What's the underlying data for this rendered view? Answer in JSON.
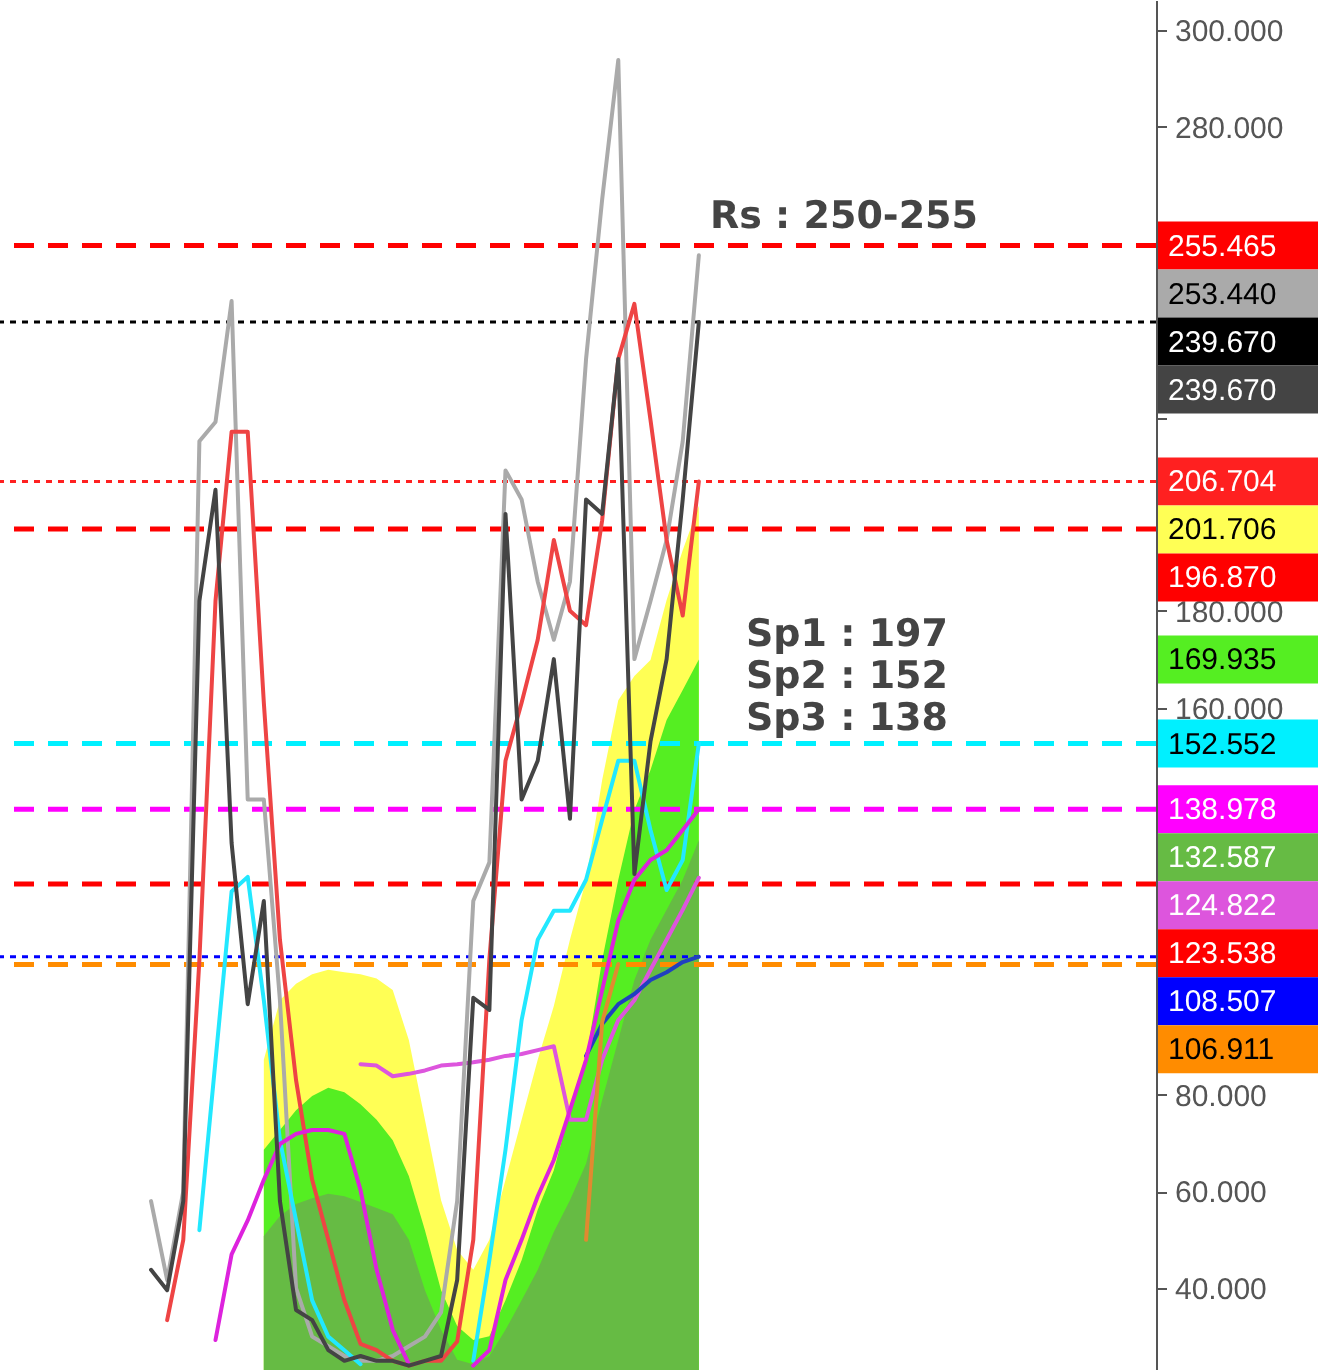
{
  "chart_data": {
    "type": "line",
    "categories": [
      null,
      null,
      null,
      null,
      null,
      null,
      null,
      null,
      null,
      null,
      null,
      null,
      null,
      null,
      null,
      null,
      null,
      null,
      null,
      null,
      null,
      null,
      null,
      null,
      null,
      null,
      null,
      null,
      null,
      null,
      null,
      null,
      null,
      null,
      null,
      null,
      null,
      null,
      null,
      null,
      null,
      null,
      null,
      null,
      null,
      null,
      null,
      null,
      null,
      null,
      null,
      null,
      null,
      null,
      null,
      null,
      null,
      null,
      null,
      null,
      null,
      null,
      null,
      null,
      null,
      null,
      null,
      null,
      null,
      null,
      null,
      null
    ],
    "ylim": [
      23.1,
      306.2
    ],
    "yticks": [
      {
        "value": 40,
        "label": "40.000"
      },
      {
        "value": 60,
        "label": "60.000"
      },
      {
        "value": 80,
        "label": "80.000"
      },
      {
        "value": 100,
        "label": null
      },
      {
        "value": 120,
        "label": null
      },
      {
        "value": 140,
        "label": null
      },
      {
        "value": 160,
        "label": "160.000"
      },
      {
        "value": 180,
        "label": "180.000"
      },
      {
        "value": 200,
        "label": null
      },
      {
        "value": 220,
        "label": null
      },
      {
        "value": 240,
        "label": null
      },
      {
        "value": 260,
        "label": null
      },
      {
        "value": 280,
        "label": "280.000"
      },
      {
        "value": 300,
        "label": "300.000"
      }
    ],
    "tick_labels": "y",
    "grid": false,
    "marker": "none",
    "series": [
      {
        "type": "area",
        "color": "#ffff55",
        "values": [
          null,
          null,
          null,
          null,
          null,
          null,
          null,
          null,
          null,
          null,
          null,
          null,
          null,
          null,
          null,
          null,
          87.2,
          99.5,
          102.9,
          104.9,
          105.8,
          105.3,
          104.9,
          104,
          101.6,
          91.3,
          74.8,
          58.2,
          47.9,
          43.8,
          50,
          62.4,
          74.8,
          87.2,
          98.3,
          112,
          124.4,
          145,
          161.5,
          166.5,
          169.8,
          182.2,
          192.5,
          201.706,
          null,
          null,
          null,
          null,
          null,
          null,
          null,
          null,
          null,
          null,
          null,
          null,
          null,
          null,
          null,
          null,
          null,
          null,
          null,
          null,
          null,
          null,
          null,
          null,
          null,
          null,
          null,
          null
        ]
      },
      {
        "type": "area",
        "color": "#55ee22",
        "values": [
          null,
          null,
          null,
          null,
          null,
          null,
          null,
          null,
          null,
          null,
          null,
          null,
          null,
          null,
          null,
          null,
          68.6,
          72.7,
          76.8,
          79.7,
          81.4,
          80.5,
          78,
          74.8,
          70.6,
          63.2,
          52,
          39.6,
          32.2,
          29.3,
          30.1,
          37.5,
          45.8,
          56.2,
          64.4,
          76.8,
          87.2,
          107.8,
          124.4,
          138.8,
          147.1,
          157.4,
          163.6,
          169.935,
          null,
          null,
          null,
          null,
          null,
          null,
          null,
          null,
          null,
          null,
          null,
          null,
          null,
          null,
          null,
          null,
          null,
          null,
          null,
          null,
          null,
          null,
          null,
          null,
          null,
          null,
          null,
          null
        ]
      },
      {
        "type": "area",
        "color": "#66bb44",
        "values": [
          null,
          null,
          null,
          null,
          null,
          null,
          null,
          null,
          null,
          null,
          null,
          null,
          null,
          null,
          null,
          null,
          50.8,
          54.9,
          57.4,
          58.6,
          59.5,
          59,
          57.8,
          56.6,
          55.3,
          50,
          39.6,
          31.4,
          25.2,
          24.3,
          26,
          31.4,
          37.5,
          43.8,
          51.6,
          58.2,
          65.7,
          78.9,
          91.3,
          103.7,
          112,
          118.2,
          124.4,
          132.587,
          null,
          null,
          null,
          null,
          null,
          null,
          null,
          null,
          null,
          null,
          null,
          null,
          null,
          null,
          null,
          null,
          null,
          null,
          null,
          null,
          null,
          null,
          null,
          null,
          null,
          null,
          null,
          null
        ]
      },
      {
        "type": "line",
        "color": "#dd55dd",
        "values": [
          null,
          null,
          null,
          null,
          null,
          null,
          null,
          null,
          null,
          null,
          null,
          null,
          null,
          null,
          null,
          null,
          null,
          null,
          null,
          null,
          null,
          null,
          86.3,
          86,
          83.8,
          84.3,
          85,
          86,
          86.3,
          86.7,
          87.2,
          88,
          88.4,
          89.2,
          90,
          74.8,
          74.8,
          87.2,
          95.4,
          99.5,
          105.8,
          112,
          118.2,
          124.822,
          null,
          null,
          null,
          null,
          null,
          null,
          null,
          null,
          null,
          null,
          null,
          null,
          null,
          null,
          null,
          null,
          null,
          null,
          null,
          null,
          null,
          null,
          null,
          null,
          null,
          null,
          null,
          null
        ]
      },
      {
        "type": "line",
        "color": "#2040c0",
        "values": [
          null,
          null,
          null,
          null,
          null,
          null,
          null,
          null,
          null,
          null,
          null,
          null,
          null,
          null,
          null,
          null,
          null,
          null,
          null,
          null,
          null,
          null,
          null,
          null,
          null,
          null,
          null,
          null,
          null,
          null,
          null,
          null,
          null,
          null,
          null,
          null,
          88,
          94.6,
          98.7,
          100.8,
          103.7,
          105.3,
          107.4,
          108.507,
          null,
          null,
          null,
          null,
          null,
          null,
          null,
          null,
          null,
          null,
          null,
          null,
          null,
          null,
          null,
          null,
          null,
          null,
          null,
          null,
          null,
          null,
          null,
          null,
          null,
          null,
          null,
          null
        ]
      },
      {
        "type": "line",
        "color": "#e08a30",
        "values": [
          null,
          null,
          null,
          null,
          null,
          null,
          null,
          null,
          null,
          null,
          null,
          null,
          null,
          null,
          null,
          null,
          null,
          null,
          null,
          null,
          null,
          null,
          null,
          null,
          null,
          null,
          null,
          null,
          null,
          null,
          null,
          null,
          null,
          null,
          null,
          null,
          50,
          95,
          107,
          null,
          null,
          null,
          null,
          null,
          null,
          null,
          null,
          null,
          null,
          null,
          null,
          null,
          null,
          null,
          null,
          null,
          null,
          null,
          null,
          null,
          null,
          null,
          null,
          null,
          null,
          null,
          null,
          null,
          null,
          null,
          null,
          null
        ]
      },
      {
        "type": "line",
        "color": "#aaaaaa",
        "values": [
          null,
          null,
          null,
          null,
          null,
          null,
          null,
          null,
          null,
          58,
          41.7,
          60,
          215,
          219,
          244,
          141,
          141,
          99.5,
          40,
          30,
          28,
          26,
          25,
          25,
          26,
          28,
          30,
          35,
          58,
          120,
          128,
          209,
          203,
          186,
          174,
          186,
          232,
          265,
          293.8,
          170,
          182,
          194.6,
          215,
          253.44,
          null,
          null,
          null,
          null,
          null,
          null,
          null,
          null,
          null,
          null,
          null,
          null,
          null,
          null,
          null,
          null,
          null,
          null,
          null,
          null,
          null,
          null,
          null,
          null,
          null,
          null,
          null,
          null
        ]
      },
      {
        "type": "line",
        "color": "#ee4444",
        "values": [
          null,
          null,
          null,
          null,
          null,
          null,
          null,
          null,
          null,
          null,
          33.4,
          50,
          107.8,
          182,
          217,
          217,
          161,
          112,
          83,
          62.4,
          50,
          37.5,
          28.5,
          27.2,
          25,
          24,
          25,
          25,
          29,
          50,
          108,
          149,
          161,
          174,
          194.6,
          180,
          177,
          198.7,
          232,
          243.4,
          219.4,
          194.6,
          179,
          206.704,
          null,
          null,
          null,
          null,
          null,
          null,
          null,
          null,
          null,
          null,
          null,
          null,
          null,
          null,
          null,
          null,
          null,
          null,
          null,
          null,
          null,
          null,
          null,
          null,
          null,
          null,
          null,
          null
        ]
      },
      {
        "type": "line",
        "color": "#22e8ff",
        "values": [
          null,
          null,
          null,
          null,
          null,
          null,
          null,
          null,
          null,
          null,
          null,
          null,
          52,
          87,
          122,
          125,
          99.5,
          70.6,
          54,
          37.5,
          30,
          27.2,
          24.3,
          null,
          null,
          null,
          null,
          null,
          null,
          25,
          45.8,
          68.6,
          95.4,
          112,
          118,
          118,
          124.4,
          136.8,
          149,
          149,
          134.7,
          122.3,
          128.5,
          152.552,
          null,
          null,
          null,
          null,
          null,
          null,
          null,
          null,
          null,
          null,
          null,
          null,
          null,
          null,
          null,
          null,
          null,
          null,
          null,
          null,
          null,
          null,
          null,
          null,
          null,
          null,
          null,
          null
        ]
      },
      {
        "type": "line",
        "color": "#dd22dd",
        "values": [
          null,
          null,
          null,
          null,
          null,
          null,
          null,
          null,
          null,
          null,
          null,
          null,
          null,
          29.3,
          47,
          54,
          62.4,
          69.8,
          71.9,
          72.7,
          72.7,
          71.9,
          60.3,
          43.8,
          31.4,
          24.3,
          null,
          null,
          null,
          24,
          27.2,
          41.7,
          50,
          59,
          66.5,
          76.8,
          87.2,
          101.6,
          116,
          124.4,
          128.5,
          130.5,
          134.7,
          138.978,
          null,
          null,
          null,
          null,
          null,
          null,
          null,
          null,
          null,
          null,
          null,
          null,
          null,
          null,
          null,
          null,
          null,
          null,
          null,
          null,
          null,
          null,
          null,
          null,
          null,
          null,
          null,
          null
        ]
      },
      {
        "type": "line",
        "color": "#444444",
        "values": [
          null,
          null,
          null,
          null,
          null,
          null,
          null,
          null,
          null,
          43.8,
          39.6,
          58,
          182,
          205,
          132,
          98.7,
          120,
          58,
          35.5,
          33.4,
          27.2,
          25,
          26,
          25,
          25,
          24,
          25,
          26,
          41.7,
          100,
          97.5,
          200,
          141,
          149,
          170,
          137,
          203,
          200,
          232,
          125.6,
          153,
          170,
          203,
          239.67,
          null,
          null,
          null,
          null,
          null,
          null,
          null,
          null,
          null,
          null,
          null,
          null,
          null,
          null,
          null,
          null,
          null,
          null,
          null,
          null,
          null,
          null,
          null,
          null,
          null,
          null,
          null,
          null
        ]
      }
    ],
    "ref_lines": [
      {
        "axis": "y",
        "value": 255.465,
        "label": "255.465",
        "color": "#ff0000",
        "line_style": "dashed"
      },
      {
        "axis": "y",
        "value": 239.67,
        "label": "239.670",
        "color": "#000000",
        "line_style": "dotted"
      },
      {
        "axis": "y",
        "value": 206.704,
        "label": "206.704",
        "color": "#ff2020",
        "line_style": "dotted"
      },
      {
        "axis": "y",
        "value": 196.87,
        "label": "196.870",
        "color": "#ff0000",
        "line_style": "dashed"
      },
      {
        "axis": "y",
        "value": 152.552,
        "label": "152.552",
        "color": "#00f0ff",
        "line_style": "dashed"
      },
      {
        "axis": "y",
        "value": 138.978,
        "label": "138.978",
        "color": "#ff00ff",
        "line_style": "dashed"
      },
      {
        "axis": "y",
        "value": 123.538,
        "label": "123.538",
        "color": "#ff0000",
        "line_style": "dashed"
      },
      {
        "axis": "y",
        "value": 108.507,
        "label": "108.507",
        "color": "#0000ff",
        "line_style": "dotted"
      },
      {
        "axis": "y",
        "value": 106.911,
        "label": "106.911",
        "color": "#ff8c00",
        "line_style": "dashed"
      }
    ],
    "annotations": [
      "Rs : 250-255",
      "Sp1 : 197",
      "Sp2 : 152",
      "Sp3 : 138",
      "253.440",
      "239.670",
      "201.706",
      "169.935",
      "132.587",
      "124.822"
    ]
  }
}
